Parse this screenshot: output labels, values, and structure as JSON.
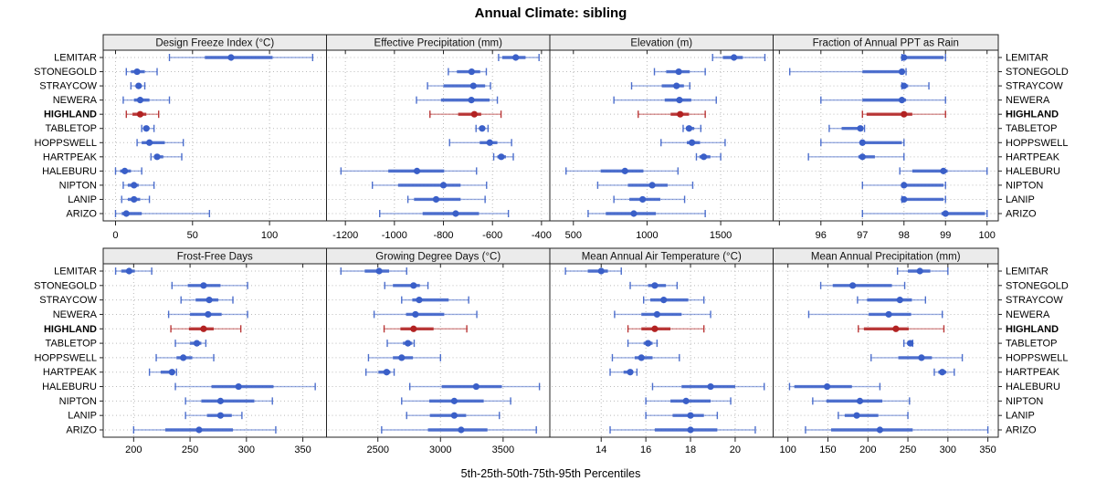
{
  "title": "Annual Climate: sibling",
  "caption": "5th-25th-50th-75th-95th Percentiles",
  "colors": {
    "series": "#3a5fc8",
    "highlight": "#b22222",
    "header_bg": "#ebebeb",
    "grid": "#bbbbbb",
    "border": "#222222",
    "text": "#000000"
  },
  "chart_data": {
    "type": "dotplot",
    "subtitle_note": "trellis of 8 panels, 2 rows x 4 columns, free x-scales",
    "percentiles": [
      5,
      25,
      50,
      75,
      95
    ],
    "sites": [
      "LEMITAR",
      "STONEGOLD",
      "STRAYCOW",
      "NEWERA",
      "HIGHLAND",
      "TABLETOP",
      "HOPPSWELL",
      "HARTPEAK",
      "HALEBURU",
      "NIPTON",
      "LANIP",
      "ARIZO"
    ],
    "highlight_site": "HIGHLAND",
    "panels": [
      {
        "title": "Design Freeze Index (°C)",
        "xlim": [
          -8,
          137
        ],
        "ticks": [
          0,
          50,
          100
        ],
        "tick_labels": [
          "0",
          "50",
          "100"
        ],
        "values": [
          [
            35,
            58,
            75,
            102,
            128
          ],
          [
            7,
            10,
            14,
            19,
            27
          ],
          [
            10,
            13,
            15,
            17,
            19
          ],
          [
            5,
            12,
            16,
            22,
            35
          ],
          [
            7,
            11,
            16,
            20,
            28
          ],
          [
            17,
            19,
            20,
            22,
            25
          ],
          [
            14,
            17,
            22,
            32,
            44
          ],
          [
            23,
            25,
            27,
            31,
            43
          ],
          [
            0,
            3,
            6,
            10,
            17
          ],
          [
            5,
            8,
            12,
            15,
            25
          ],
          [
            4,
            8,
            12,
            16,
            22
          ],
          [
            0,
            4,
            7,
            17,
            61
          ]
        ]
      },
      {
        "title": "Effective Precipitation (mm)",
        "xlim": [
          -1277,
          -366
        ],
        "ticks": [
          -1200,
          -1000,
          -800,
          -600,
          -400
        ],
        "tick_labels": [
          "-1200",
          "-1000",
          "-800",
          "-600",
          "-400"
        ],
        "values": [
          [
            -575,
            -560,
            -505,
            -465,
            -410
          ],
          [
            -780,
            -745,
            -685,
            -650,
            -625
          ],
          [
            -865,
            -800,
            -678,
            -630,
            -608
          ],
          [
            -910,
            -810,
            -686,
            -612,
            -580
          ],
          [
            -855,
            -740,
            -674,
            -646,
            -565
          ],
          [
            -667,
            -654,
            -642,
            -630,
            -618
          ],
          [
            -775,
            -652,
            -611,
            -580,
            -522
          ],
          [
            -595,
            -580,
            -564,
            -545,
            -515
          ],
          [
            -1218,
            -1025,
            -908,
            -797,
            -665
          ],
          [
            -1090,
            -985,
            -800,
            -730,
            -624
          ],
          [
            -945,
            -920,
            -830,
            -730,
            -630
          ],
          [
            -1060,
            -885,
            -750,
            -655,
            -535
          ]
        ]
      },
      {
        "title": "Elevation (m)",
        "xlim": [
          340,
          1856
        ],
        "ticks": [
          500,
          1000,
          1500
        ],
        "tick_labels": [
          "500",
          "1000",
          "1500"
        ],
        "values": [
          [
            1445,
            1515,
            1590,
            1650,
            1800
          ],
          [
            1050,
            1130,
            1215,
            1290,
            1395
          ],
          [
            895,
            1100,
            1200,
            1250,
            1290
          ],
          [
            775,
            1120,
            1220,
            1300,
            1470
          ],
          [
            940,
            1160,
            1225,
            1285,
            1395
          ],
          [
            1245,
            1265,
            1285,
            1320,
            1365
          ],
          [
            1095,
            1270,
            1305,
            1360,
            1530
          ],
          [
            1335,
            1355,
            1385,
            1430,
            1500
          ],
          [
            450,
            685,
            850,
            975,
            1210
          ],
          [
            665,
            870,
            1035,
            1140,
            1310
          ],
          [
            775,
            880,
            970,
            1090,
            1255
          ],
          [
            600,
            720,
            910,
            1060,
            1395
          ]
        ]
      },
      {
        "title": "Fraction of Annual PPT as Rain",
        "xlim": [
          94.85,
          100.27
        ],
        "ticks": [
          95,
          96,
          97,
          98,
          99,
          100
        ],
        "tick_labels": [
          "",
          "96",
          "97",
          "98",
          "99",
          "100"
        ],
        "values": [
          [
            97.95,
            98,
            98,
            98.95,
            99
          ],
          [
            95.25,
            97,
            97.95,
            98,
            98.05
          ],
          [
            97.95,
            98,
            98,
            98.1,
            98.6
          ],
          [
            96,
            97,
            97.95,
            98.05,
            99
          ],
          [
            97,
            97.1,
            98,
            98.2,
            99
          ],
          [
            96.2,
            96.5,
            96.95,
            97,
            97.05
          ],
          [
            96,
            96.95,
            97,
            97.95,
            98
          ],
          [
            95.7,
            96.9,
            97,
            97.3,
            98
          ],
          [
            97.9,
            98.2,
            98.95,
            99.05,
            100
          ],
          [
            97,
            97.95,
            98,
            98.95,
            99
          ],
          [
            97.95,
            98,
            98,
            98.95,
            99
          ],
          [
            97,
            98.9,
            99,
            99.95,
            100
          ]
        ]
      },
      {
        "title": "Frost-Free Days",
        "xlim": [
          173,
          371
        ],
        "ticks": [
          200,
          250,
          300,
          350
        ],
        "tick_labels": [
          "200",
          "250",
          "300",
          "350"
        ],
        "values": [
          [
            184,
            189,
            196,
            201,
            216
          ],
          [
            234,
            248,
            262,
            277,
            301
          ],
          [
            242,
            255,
            267,
            275,
            288
          ],
          [
            231,
            250,
            266,
            278,
            301
          ],
          [
            233,
            249,
            262,
            271,
            295
          ],
          [
            237,
            250,
            256,
            260,
            264
          ],
          [
            220,
            238,
            244,
            252,
            271
          ],
          [
            214,
            224,
            234,
            236,
            238
          ],
          [
            237,
            269,
            293,
            324,
            361
          ],
          [
            246,
            260,
            277,
            307,
            323
          ],
          [
            246,
            265,
            277,
            287,
            296
          ],
          [
            200,
            228,
            258,
            288,
            326
          ]
        ]
      },
      {
        "title": "Growing Degree Days (°C)",
        "xlim": [
          2090,
          3873
        ],
        "ticks": [
          2500,
          3000,
          3500
        ],
        "tick_labels": [
          "2500",
          "3000",
          "3500"
        ],
        "values": [
          [
            2205,
            2395,
            2510,
            2590,
            2730
          ],
          [
            2555,
            2620,
            2785,
            2835,
            2900
          ],
          [
            2690,
            2775,
            2830,
            3065,
            3225
          ],
          [
            2470,
            2725,
            2800,
            3030,
            3290
          ],
          [
            2550,
            2680,
            2785,
            2945,
            3210
          ],
          [
            2575,
            2700,
            2740,
            2775,
            2790
          ],
          [
            2425,
            2620,
            2690,
            2780,
            3000
          ],
          [
            2405,
            2505,
            2570,
            2600,
            2630
          ],
          [
            2755,
            3010,
            3285,
            3490,
            3790
          ],
          [
            2690,
            2910,
            3110,
            3345,
            3560
          ],
          [
            2730,
            2915,
            3110,
            3205,
            3470
          ],
          [
            2530,
            2900,
            3165,
            3375,
            3765
          ]
        ]
      },
      {
        "title": "Mean Annual Air Temperature (°C)",
        "xlim": [
          11.7,
          21.7
        ],
        "ticks": [
          14,
          16,
          18,
          20
        ],
        "tick_labels": [
          "14",
          "16",
          "18",
          "20"
        ],
        "values": [
          [
            12.4,
            13.4,
            14.0,
            14.3,
            14.9
          ],
          [
            15.3,
            16.1,
            16.4,
            16.9,
            17.4
          ],
          [
            15.9,
            16.2,
            16.8,
            17.9,
            18.6
          ],
          [
            14.6,
            15.8,
            16.5,
            17.6,
            18.9
          ],
          [
            15.2,
            15.8,
            16.4,
            17.1,
            18.6
          ],
          [
            15.2,
            15.9,
            16.1,
            16.3,
            16.5
          ],
          [
            14.5,
            15.5,
            15.8,
            16.3,
            17.5
          ],
          [
            14.4,
            15.0,
            15.3,
            15.4,
            15.6
          ],
          [
            16.3,
            17.6,
            18.9,
            20.0,
            21.3
          ],
          [
            16.0,
            17.1,
            17.8,
            18.9,
            19.8
          ],
          [
            16.0,
            17.2,
            18.0,
            18.6,
            19.2
          ],
          [
            14.4,
            16.4,
            18.0,
            19.2,
            20.9
          ]
        ]
      },
      {
        "title": "Mean Annual Precipitation (mm)",
        "xlim": [
          81.5,
          363
        ],
        "ticks": [
          100,
          150,
          200,
          250,
          300,
          350
        ],
        "tick_labels": [
          "100",
          "150",
          "200",
          "250",
          "300",
          "350"
        ],
        "values": [
          [
            237,
            250,
            265,
            278,
            300
          ],
          [
            141,
            156,
            181,
            230,
            246
          ],
          [
            187,
            199,
            240,
            255,
            272
          ],
          [
            126,
            201,
            226,
            254,
            293
          ],
          [
            188,
            195,
            235,
            251,
            295
          ],
          [
            245,
            249,
            253,
            255,
            256
          ],
          [
            204,
            238,
            267,
            280,
            318
          ],
          [
            283,
            288,
            293,
            298,
            308
          ],
          [
            102,
            108,
            149,
            180,
            215
          ],
          [
            131,
            148,
            190,
            218,
            252
          ],
          [
            163,
            171,
            186,
            213,
            250
          ],
          [
            122,
            154,
            215,
            256,
            350
          ]
        ]
      }
    ]
  }
}
